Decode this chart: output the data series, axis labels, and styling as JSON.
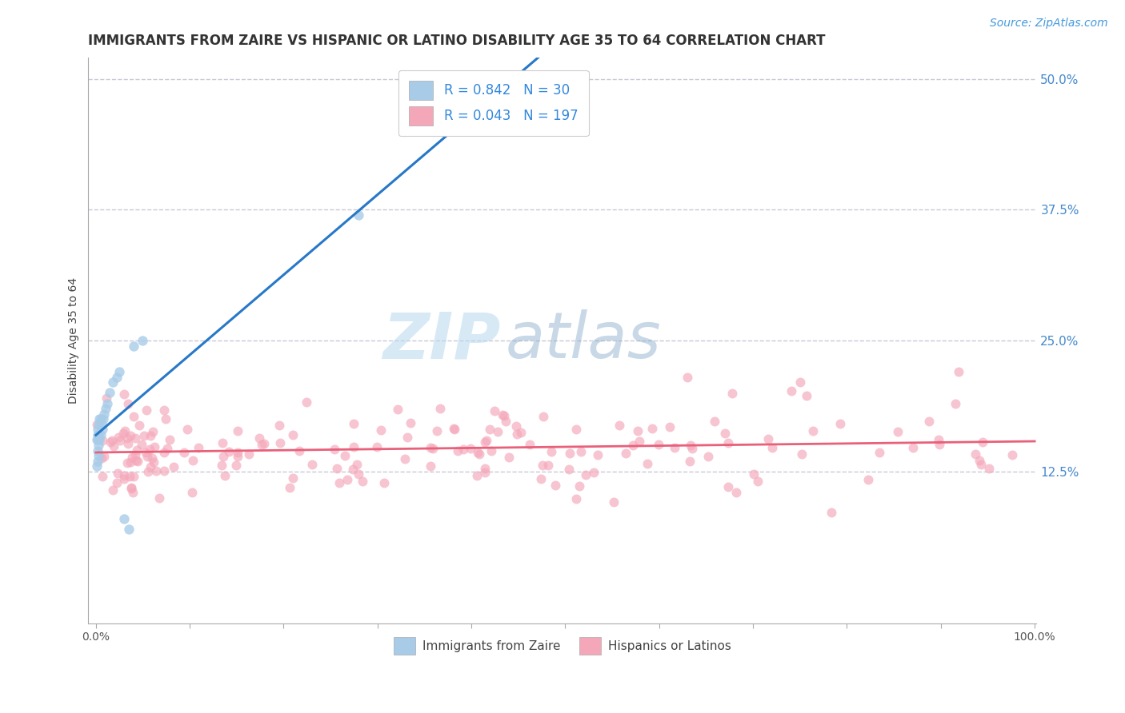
{
  "title": "IMMIGRANTS FROM ZAIRE VS HISPANIC OR LATINO DISABILITY AGE 35 TO 64 CORRELATION CHART",
  "source_text": "Source: ZipAtlas.com",
  "ylabel": "Disability Age 35 to 64",
  "xlim": [
    0,
    1.0
  ],
  "ylim": [
    0,
    0.5
  ],
  "yticks": [
    0.0,
    0.125,
    0.25,
    0.375,
    0.5
  ],
  "yticklabels": [
    "",
    "12.5%",
    "25.0%",
    "37.5%",
    "50.0%"
  ],
  "blue_R": 0.842,
  "blue_N": 30,
  "pink_R": 0.043,
  "pink_N": 197,
  "blue_color": "#a8cce8",
  "pink_color": "#f4a7b9",
  "blue_line_color": "#2878c8",
  "pink_line_color": "#e8607a",
  "legend_label_blue": "Immigrants from Zaire",
  "legend_label_pink": "Hispanics or Latinos",
  "background_color": "#ffffff",
  "grid_color": "#c8c8d8",
  "title_fontsize": 12,
  "axis_label_fontsize": 10,
  "tick_fontsize": 10,
  "legend_fontsize": 11,
  "source_fontsize": 10,
  "blue_scatter_x": [
    0.001,
    0.001,
    0.0015,
    0.0015,
    0.002,
    0.002,
    0.002,
    0.0025,
    0.003,
    0.003,
    0.003,
    0.004,
    0.004,
    0.005,
    0.005,
    0.006,
    0.007,
    0.008,
    0.009,
    0.01,
    0.012,
    0.015,
    0.018,
    0.022,
    0.025,
    0.03,
    0.035,
    0.04,
    0.05,
    0.28
  ],
  "blue_scatter_y": [
    0.13,
    0.155,
    0.145,
    0.16,
    0.135,
    0.155,
    0.165,
    0.15,
    0.14,
    0.16,
    0.17,
    0.155,
    0.175,
    0.16,
    0.175,
    0.17,
    0.165,
    0.175,
    0.18,
    0.185,
    0.19,
    0.2,
    0.21,
    0.215,
    0.22,
    0.08,
    0.07,
    0.245,
    0.25,
    0.37
  ]
}
